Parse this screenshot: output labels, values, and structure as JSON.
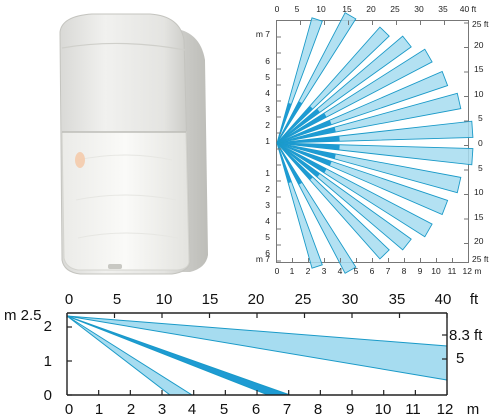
{
  "colors": {
    "beam_fill": "#a6dcf0",
    "beam_stroke": "#1a9ac8",
    "beam_dense": "#1e9bd3",
    "grid": "#777777",
    "device_body": "#ececea",
    "device_lens": "#f6f6f4"
  },
  "device": {
    "indicator_icon": "led-indicator-icon"
  },
  "top_view": {
    "top_ft_ticks": [
      "0",
      "5",
      "10",
      "15",
      "20",
      "25",
      "30",
      "35",
      "40 ft"
    ],
    "bottom_m_ticks": [
      "0",
      "1",
      "2",
      "3",
      "4",
      "5",
      "6",
      "7",
      "8",
      "9",
      "10",
      "11",
      "12 m"
    ],
    "left_m_ticks": [
      "m 7",
      "6",
      "5",
      "4",
      "3",
      "2",
      "1",
      "0",
      "1",
      "2",
      "3",
      "4",
      "5",
      "6",
      "m 7"
    ],
    "right_ft_ticks": [
      "25 ft",
      "20",
      "15",
      "10",
      "5",
      "0",
      "5",
      "10",
      "15",
      "20",
      "25 ft"
    ]
  },
  "side_view": {
    "top_ft_ticks": [
      "0",
      "5",
      "10",
      "15",
      "20",
      "25",
      "30",
      "35",
      "40",
      "ft"
    ],
    "bottom_m_ticks": [
      "0",
      "1",
      "2",
      "3",
      "4",
      "5",
      "6",
      "7",
      "8",
      "9",
      "10",
      "11",
      "12",
      "m"
    ],
    "left_m_ticks": [
      "m 2.5",
      "2",
      "1",
      "0"
    ],
    "right_ft_ticks": [
      "8.3 ft",
      "5"
    ]
  }
}
